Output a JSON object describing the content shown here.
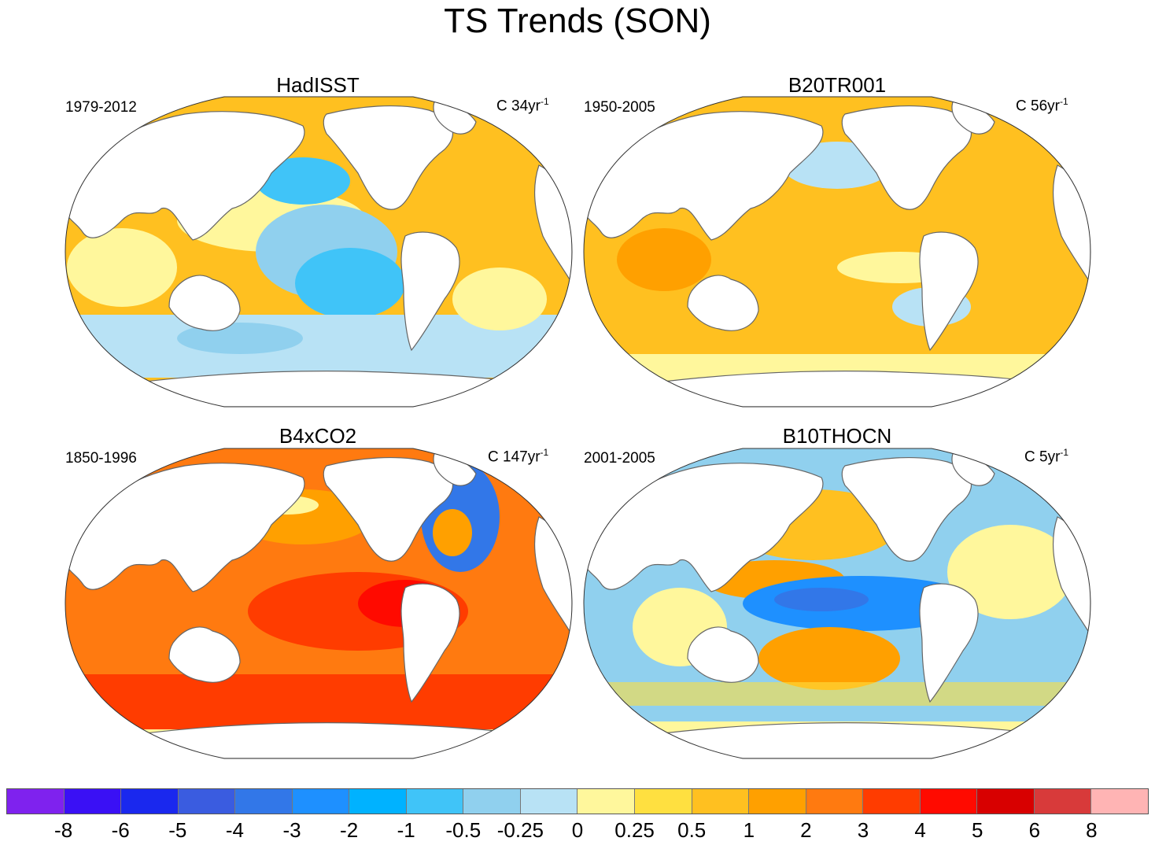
{
  "title": "TS Trends (SON)",
  "panels": [
    {
      "name": "HadISST",
      "period": "1979-2012",
      "units_prefix": "C 34yr",
      "units_exp": "-1"
    },
    {
      "name": "B20TR001",
      "period": "1950-2005",
      "units_prefix": "C 56yr",
      "units_exp": "-1"
    },
    {
      "name": "B4xCO2",
      "period": "1850-1996",
      "units_prefix": "C 147yr",
      "units_exp": "-1"
    },
    {
      "name": "B10THOCN",
      "period": "2001-2005",
      "units_prefix": "C 5yr",
      "units_exp": "-1"
    }
  ],
  "colorbar": {
    "labels": [
      "-8",
      "-6",
      "-5",
      "-4",
      "-3",
      "-2",
      "-1",
      "-0.5",
      "-0.25",
      "0",
      "0.25",
      "0.5",
      "1",
      "2",
      "3",
      "4",
      "5",
      "6",
      "8"
    ],
    "colors": [
      "#7f22ee",
      "#3a10f5",
      "#1a28ee",
      "#3a5ce0",
      "#3277e8",
      "#1e90ff",
      "#00b2ff",
      "#40c4f8",
      "#90d0ee",
      "#b8e2f5",
      "#fff79c",
      "#ffe040",
      "#ffc020",
      "#ffa000",
      "#ff7a10",
      "#ff3c00",
      "#ff0a00",
      "#d80000",
      "#d83a3a",
      "#ffb4b4"
    ]
  }
}
